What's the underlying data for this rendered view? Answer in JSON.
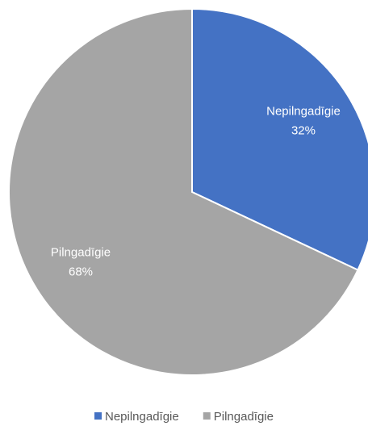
{
  "chart_data": {
    "type": "pie",
    "categories": [
      "Nepilngadīgie",
      "Pilngadīgie"
    ],
    "values": [
      32,
      68
    ],
    "value_labels": [
      "32%",
      "68%"
    ],
    "colors": [
      "#4472c4",
      "#a5a5a5"
    ],
    "legend": "bottom"
  }
}
